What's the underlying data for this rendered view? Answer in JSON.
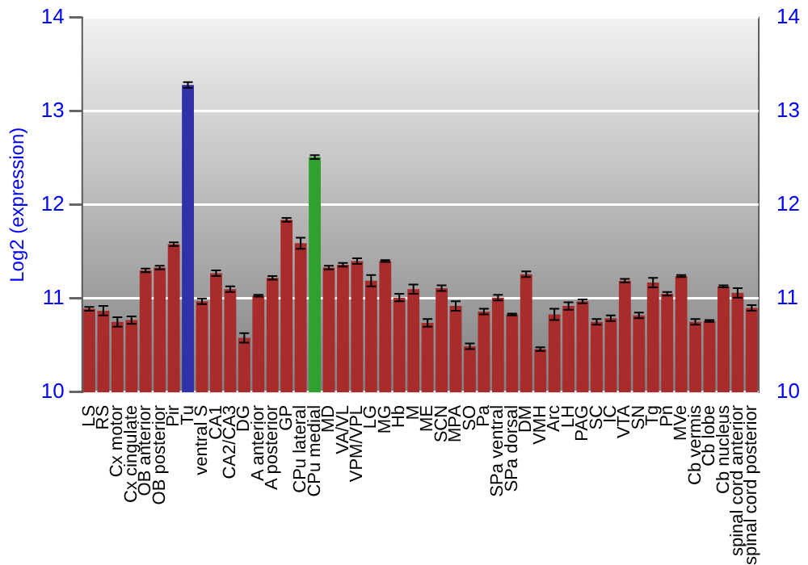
{
  "chart_data": {
    "type": "bar",
    "ylabel": "Log2 (expression)",
    "categories": [
      "LS",
      "RS",
      "Cx motor",
      "Cx cingulate",
      "OB anterior",
      "OB posterior",
      "Pir",
      "Tu",
      "ventral S",
      "CA1",
      "CA2/CA3",
      "DG",
      "A anterior",
      "A posterior",
      "GP",
      "CPu lateral",
      "CPu medial",
      "MD",
      "VA/VL",
      "VPM/VPL",
      "LG",
      "MG",
      "Hb",
      "M",
      "ME",
      "SCN",
      "MPA",
      "SO",
      "Pa",
      "SPa ventral",
      "SPa dorsal",
      "DM",
      "VMH",
      "Arc",
      "LH",
      "PAG",
      "SC",
      "IC",
      "VTA",
      "SN",
      "Tg",
      "Pn",
      "MVe",
      "Cb vermis",
      "Cb lobe",
      "Cb nucleus",
      "spinal cord anterior",
      "spinal cord posterior"
    ],
    "values": [
      10.89,
      10.87,
      10.75,
      10.77,
      11.3,
      11.33,
      11.58,
      13.28,
      10.97,
      11.27,
      11.1,
      10.58,
      11.03,
      11.22,
      11.84,
      11.59,
      12.51,
      11.33,
      11.36,
      11.4,
      11.19,
      11.4,
      11.01,
      11.1,
      10.74,
      11.11,
      10.92,
      10.49,
      10.86,
      11.01,
      10.83,
      11.26,
      10.46,
      10.83,
      10.92,
      10.97,
      10.75,
      10.79,
      11.19,
      10.82,
      11.17,
      11.05,
      11.24,
      10.75,
      10.76,
      11.13,
      11.06,
      10.9
    ],
    "errors": [
      0.02,
      0.05,
      0.05,
      0.04,
      0.02,
      0.02,
      0.02,
      0.03,
      0.03,
      0.03,
      0.03,
      0.05,
      0.01,
      0.02,
      0.02,
      0.06,
      0.02,
      0.02,
      0.02,
      0.03,
      0.06,
      0.01,
      0.04,
      0.05,
      0.04,
      0.03,
      0.05,
      0.03,
      0.03,
      0.03,
      0.01,
      0.03,
      0.02,
      0.06,
      0.04,
      0.02,
      0.03,
      0.03,
      0.02,
      0.03,
      0.05,
      0.02,
      0.01,
      0.03,
      0.01,
      0.01,
      0.05,
      0.03
    ],
    "colors": [
      "#a82c2c",
      "#a82c2c",
      "#a82c2c",
      "#a82c2c",
      "#a82c2c",
      "#a82c2c",
      "#a82c2c",
      "#3030a8",
      "#a82c2c",
      "#a82c2c",
      "#a82c2c",
      "#a82c2c",
      "#a82c2c",
      "#a82c2c",
      "#a82c2c",
      "#a82c2c",
      "#30a030",
      "#a82c2c",
      "#a82c2c",
      "#a82c2c",
      "#a82c2c",
      "#a82c2c",
      "#a82c2c",
      "#a82c2c",
      "#a82c2c",
      "#a82c2c",
      "#a82c2c",
      "#a82c2c",
      "#a82c2c",
      "#a82c2c",
      "#a82c2c",
      "#a82c2c",
      "#a82c2c",
      "#a82c2c",
      "#a82c2c",
      "#a82c2c",
      "#a82c2c",
      "#a82c2c",
      "#a82c2c",
      "#a82c2c",
      "#a82c2c",
      "#a82c2c",
      "#a82c2c",
      "#a82c2c",
      "#a82c2c",
      "#a82c2c",
      "#a82c2c",
      "#a82c2c"
    ],
    "ylim": [
      10,
      14
    ],
    "yticks": [
      10,
      11,
      12,
      13,
      14
    ],
    "y2lim": [
      10,
      14
    ],
    "y2ticks": [
      10,
      11,
      12,
      13,
      14
    ],
    "grid": "y",
    "legend": false
  }
}
